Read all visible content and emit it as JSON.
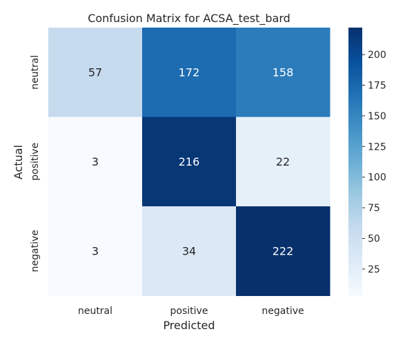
{
  "chart_data": {
    "type": "heatmap",
    "title": "Confusion Matrix for ACSA_test_bard",
    "xlabel": "Predicted",
    "ylabel": "Actual",
    "x_categories": [
      "neutral",
      "positive",
      "negative"
    ],
    "y_categories": [
      "neutral",
      "positive",
      "negative"
    ],
    "values": [
      [
        57,
        172,
        158
      ],
      [
        3,
        216,
        22
      ],
      [
        3,
        34,
        222
      ]
    ],
    "colorscale": "Blues",
    "color_range": [
      3,
      222
    ],
    "colorbar_ticks": [
      25,
      50,
      75,
      100,
      125,
      150,
      175,
      200
    ],
    "grid": false
  }
}
